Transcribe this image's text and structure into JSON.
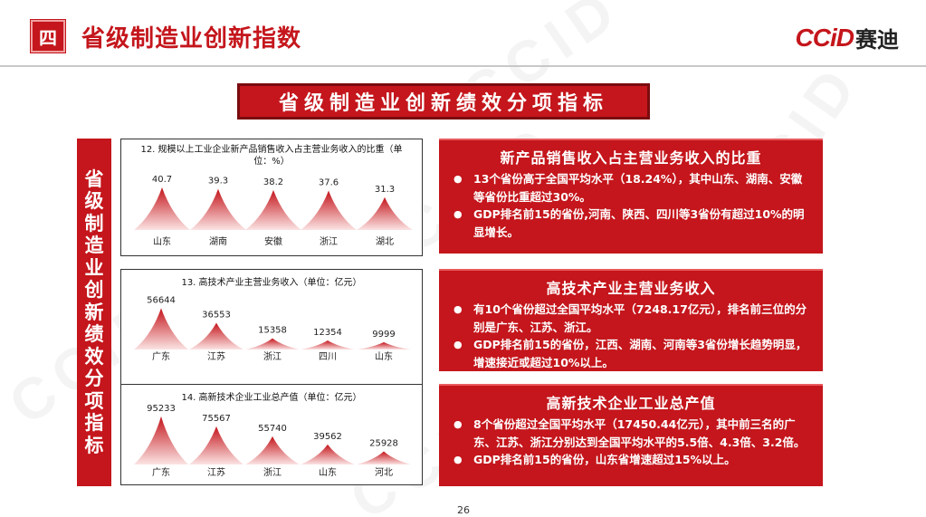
{
  "header": {
    "section_number": "四",
    "title": "省级制造业创新指数",
    "logo_latin": "CCiD",
    "logo_cn": "赛迪"
  },
  "banner": {
    "text": "省级制造业创新绩效分项指标"
  },
  "side_label": {
    "text": "省级制造业创新绩效分项指标"
  },
  "watermark_text": "CCID",
  "colors": {
    "accent": "#c4161c",
    "accent_dark": "#7a0b0e",
    "peak_light": "#fbe3e3"
  },
  "charts": [
    {
      "title": "12. 规模以上工业企业新产品销售收入占主营业务收入的比重（单位：%）",
      "chart_data": {
        "type": "area",
        "categories": [
          "山东",
          "湖南",
          "安徽",
          "浙江",
          "湖北"
        ],
        "values": [
          40.7,
          39.3,
          38.2,
          37.6,
          31.3
        ],
        "labels": [
          "40.7",
          "39.3",
          "38.2",
          "37.6",
          "31.3"
        ],
        "ylim": [
          0,
          45
        ]
      }
    },
    {
      "title": "13. 高技术产业主营业务收入（单位：亿元）",
      "chart_data": {
        "type": "area",
        "categories": [
          "广东",
          "江苏",
          "浙江",
          "四川",
          "山东"
        ],
        "values": [
          56644,
          36553,
          15358,
          12354,
          9999
        ],
        "labels": [
          "56644",
          "36553",
          "15358",
          "12354",
          "9999"
        ],
        "ylim": [
          0,
          62000
        ]
      }
    },
    {
      "title": "14. 高新技术企业工业总产值（单位：亿元）",
      "chart_data": {
        "type": "area",
        "categories": [
          "广东",
          "江苏",
          "浙江",
          "山东",
          "河北"
        ],
        "values": [
          95233,
          75567,
          55740,
          39562,
          25928
        ],
        "labels": [
          "95233",
          "75567",
          "55740",
          "39562",
          "25928"
        ],
        "ylim": [
          0,
          104000
        ]
      }
    }
  ],
  "panels": [
    {
      "title": "新产品销售收入占主营业务收入的比重",
      "bullets": [
        "13个省份高于全国平均水平（18.24%），其中山东、湖南、安徽等省份比重超过30%。",
        "GDP排名前15的省份,河南、陕西、四川等3省份有超过10%的明显增长。"
      ]
    },
    {
      "title": "高技术产业主营业务收入",
      "bullets": [
        "有10个省份超过全国平均水平（7248.17亿元），排名前三位的分别是广东、江苏、浙江。",
        "GDP排名前15的省份，江西、湖南、河南等3省份增长趋势明显，增速接近或超过10%以上。"
      ]
    },
    {
      "title": "高新技术企业工业总产值",
      "bullets": [
        "8个省份超过全国平均水平（17450.44亿元），其中前三名的广东、江苏、浙江分别达到全国平均水平的5.5倍、4.3倍、3.2倍。",
        "GDP排名前15的省份，山东省增速超过15%以上。"
      ]
    }
  ],
  "page_number": "26"
}
